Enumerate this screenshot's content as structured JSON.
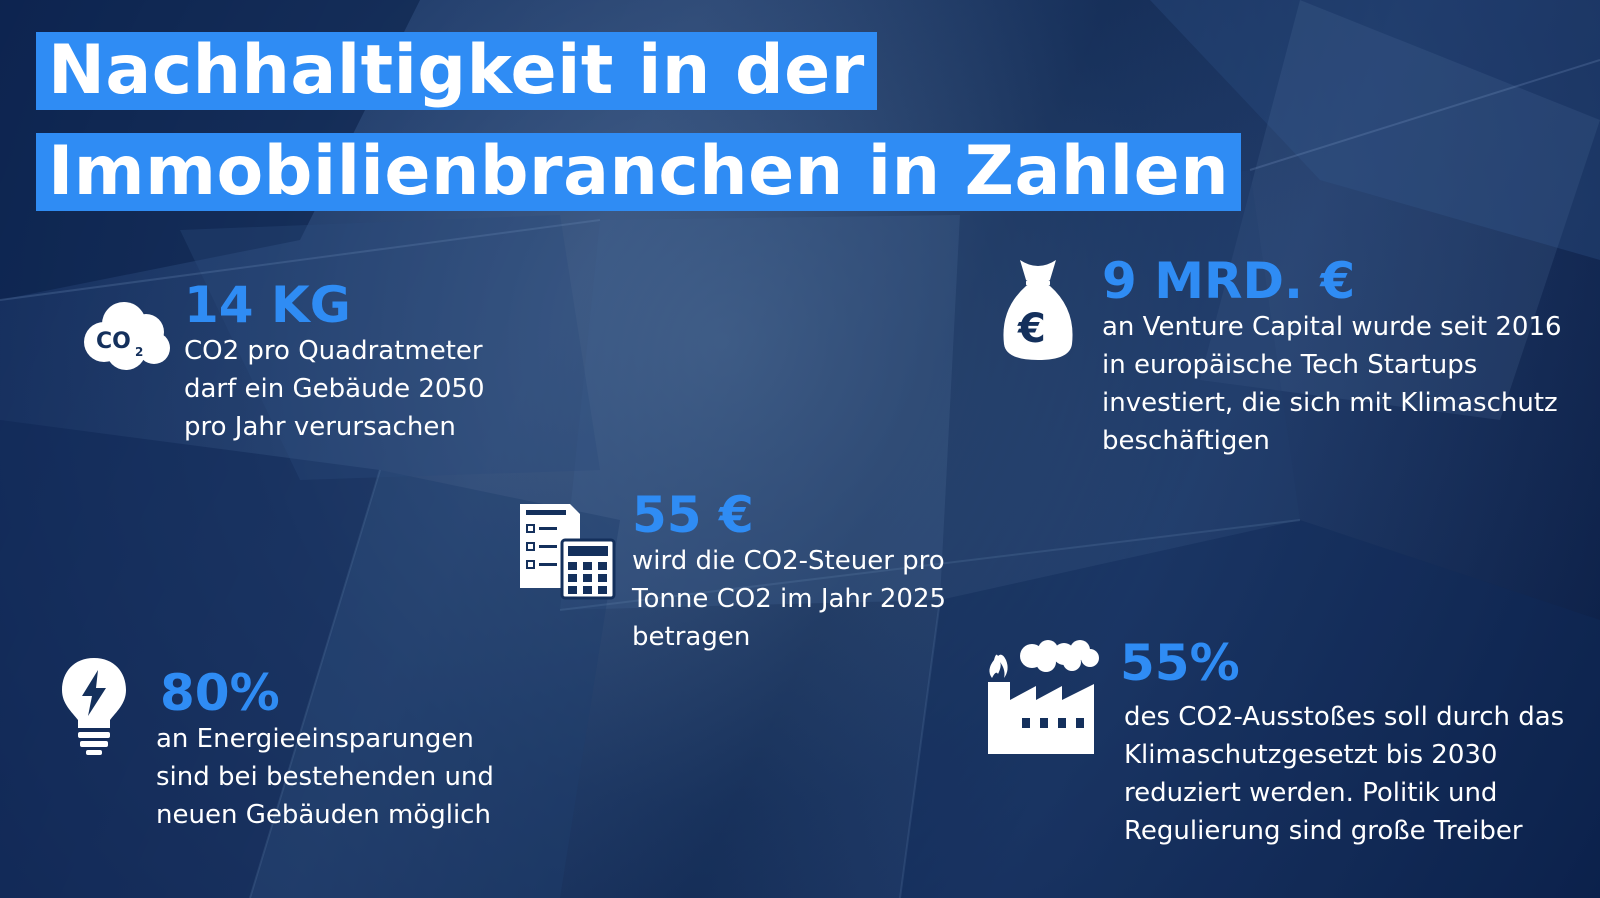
{
  "title": {
    "line1": "Nachhaltigkeit in der",
    "line2": "Immobilienbranchen in Zahlen"
  },
  "colors": {
    "accent": "#2f8cf4",
    "background": "#14305c",
    "text": "#ffffff"
  },
  "stats": [
    {
      "icon": "co2-cloud-icon",
      "value": "14 KG",
      "lines": [
        "CO2 pro Quadratmeter",
        "darf ein Gebäude 2050",
        "pro Jahr verursachen"
      ]
    },
    {
      "icon": "money-bag-euro-icon",
      "value": "9 MRD. €",
      "lines": [
        "an Venture Capital wurde seit 2016",
        "in europäische Tech Startups",
        "investiert, die sich mit Klimaschutz",
        "beschäftigen"
      ]
    },
    {
      "icon": "tax-form-calculator-icon",
      "value": "55 €",
      "lines": [
        "wird die CO2-Steuer pro",
        "Tonne CO2 im Jahr 2025",
        "betragen"
      ]
    },
    {
      "icon": "light-bulb-icon",
      "value": "80%",
      "lines": [
        "an Energieeinsparungen",
        "sind bei bestehenden und",
        "neuen Gebäuden möglich"
      ]
    },
    {
      "icon": "factory-icon",
      "value": "55%",
      "lines": [
        "des CO2-Ausstoßes soll durch das",
        "Klimaschutzgesetzt bis 2030",
        "reduziert werden. Politik und",
        "Regulierung sind große Treiber"
      ]
    }
  ]
}
